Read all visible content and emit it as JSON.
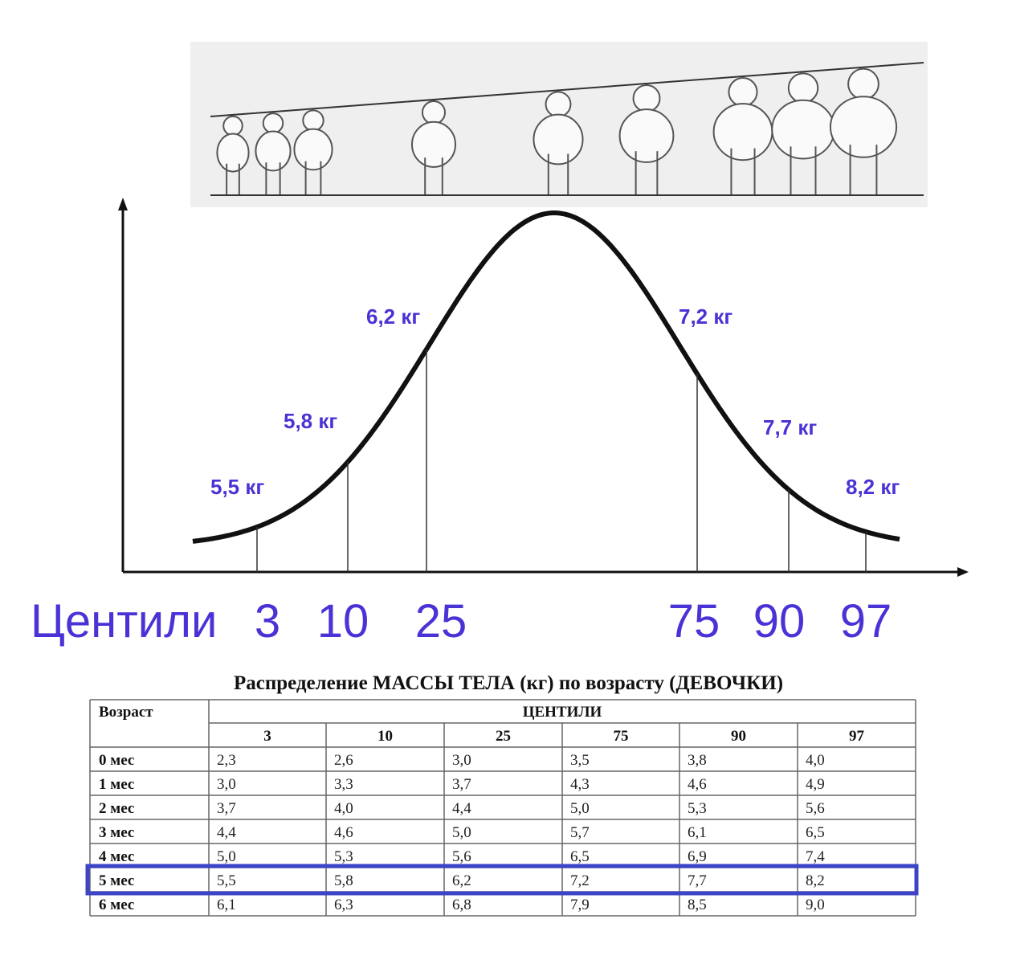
{
  "diagram": {
    "axis_label": "Центили",
    "centiles": [
      "3",
      "10",
      "25",
      "75",
      "90",
      "97"
    ],
    "weights": [
      "5,5 кг",
      "5,8 кг",
      "6,2 кг",
      "7,2 кг",
      "7,7 кг",
      "8,2 кг"
    ]
  },
  "table": {
    "title": "Распределение МАССЫ ТЕЛА (кг) по возрасту (ДЕВОЧКИ)",
    "age_header": "Возраст",
    "group_header": "ЦЕНТИЛИ",
    "columns": [
      "3",
      "10",
      "25",
      "75",
      "90",
      "97"
    ],
    "rows": [
      {
        "age": "0 мес",
        "values": [
          "2,3",
          "2,6",
          "3,0",
          "3,5",
          "3,8",
          "4,0"
        ]
      },
      {
        "age": "1 мес",
        "values": [
          "3,0",
          "3,3",
          "3,7",
          "4,3",
          "4,6",
          "4,9"
        ]
      },
      {
        "age": "2 мес",
        "values": [
          "3,7",
          "4,0",
          "4,4",
          "5,0",
          "5,3",
          "5,6"
        ]
      },
      {
        "age": "3 мес",
        "values": [
          "4,4",
          "4,6",
          "5,0",
          "5,7",
          "6,1",
          "6,5"
        ]
      },
      {
        "age": "4 мес",
        "values": [
          "5,0",
          "5,3",
          "5,6",
          "6,5",
          "6,9",
          "7,4"
        ]
      },
      {
        "age": "5 мес",
        "values": [
          "5,5",
          "5,8",
          "6,2",
          "7,2",
          "7,7",
          "8,2"
        ]
      },
      {
        "age": "6 мес",
        "values": [
          "6,1",
          "6,3",
          "6,8",
          "7,9",
          "8,5",
          "9,0"
        ]
      }
    ]
  }
}
